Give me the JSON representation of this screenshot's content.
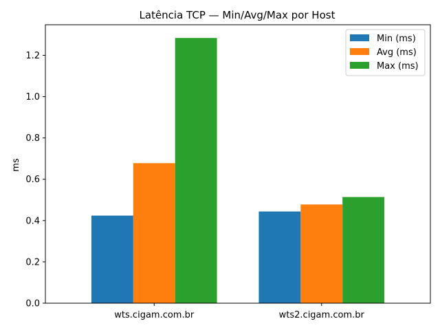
{
  "chart_data": {
    "type": "bar",
    "title": "Latência TCP — Min/Avg/Max por Host",
    "xlabel": "",
    "ylabel": "ms",
    "categories": [
      "wts.cigam.com.br",
      "wts2.cigam.com.br"
    ],
    "series": [
      {
        "name": "Min (ms)",
        "values": [
          0.424,
          0.444
        ],
        "color": "#1f77b4"
      },
      {
        "name": "Avg (ms)",
        "values": [
          0.678,
          0.478
        ],
        "color": "#ff7f0e"
      },
      {
        "name": "Max (ms)",
        "values": [
          1.284,
          0.514
        ],
        "color": "#2ca02c"
      }
    ],
    "ylim": [
      0,
      1.348
    ],
    "yticks": [
      "0.0",
      "0.2",
      "0.4",
      "0.6",
      "0.8",
      "1.0",
      "1.2"
    ],
    "grid": false,
    "legend_position": "top-right"
  }
}
